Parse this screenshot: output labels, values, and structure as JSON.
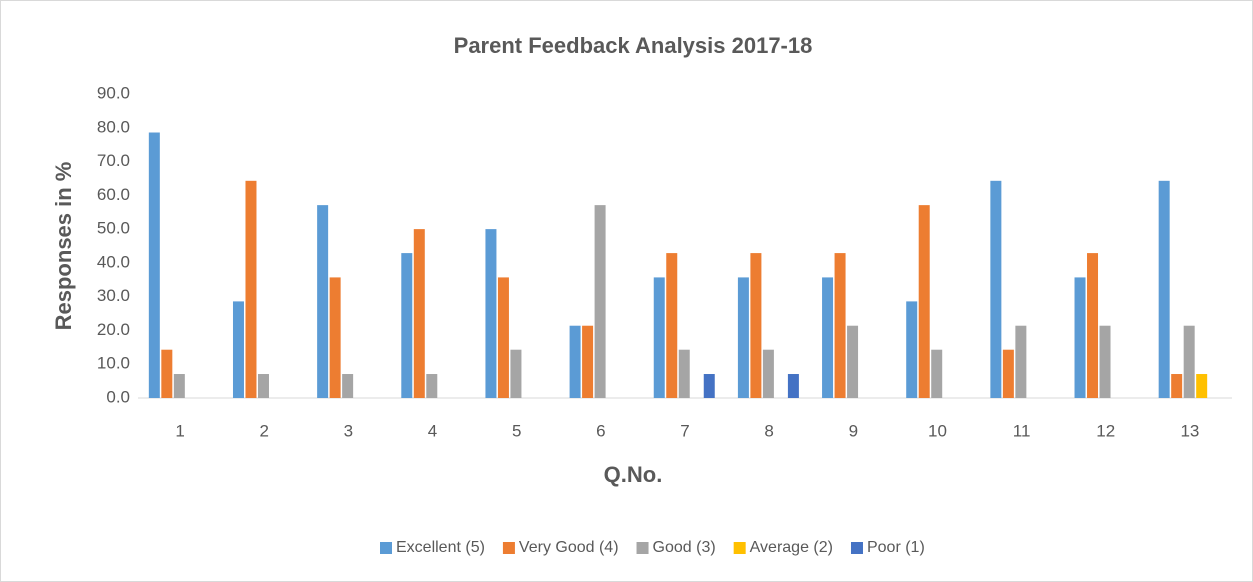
{
  "chart_data": {
    "type": "bar",
    "title": "Parent Feedback Analysis 2017-18",
    "x_label": "Q.No.",
    "y_label": "Responses in %",
    "categories": [
      "1",
      "2",
      "3",
      "4",
      "5",
      "6",
      "7",
      "8",
      "9",
      "10",
      "11",
      "12",
      "13"
    ],
    "series": [
      {
        "name": "Excellent (5)",
        "color": "#5b9bd5",
        "values": [
          78.6,
          28.6,
          57.1,
          42.9,
          50.0,
          21.4,
          35.7,
          35.7,
          35.7,
          28.6,
          64.3,
          35.7,
          64.3
        ]
      },
      {
        "name": "Very Good (4)",
        "color": "#ed7d31",
        "values": [
          14.3,
          64.3,
          35.7,
          50.0,
          35.7,
          21.4,
          42.9,
          42.9,
          42.9,
          57.1,
          14.3,
          42.9,
          7.1
        ]
      },
      {
        "name": "Good (3)",
        "color": "#a5a5a5",
        "values": [
          7.1,
          7.1,
          7.1,
          7.1,
          14.3,
          57.1,
          14.3,
          14.3,
          21.4,
          14.3,
          21.4,
          21.4,
          21.4
        ]
      },
      {
        "name": "Average (2)",
        "color": "#ffc000",
        "values": [
          0,
          0,
          0,
          0,
          0,
          0,
          0,
          0,
          0,
          0,
          0,
          0,
          7.1
        ]
      },
      {
        "name": "Poor (1)",
        "color": "#4472c4",
        "values": [
          0,
          0,
          0,
          0,
          0,
          0,
          7.1,
          7.1,
          0,
          0,
          0,
          0,
          0
        ]
      }
    ],
    "ylim": [
      0,
      90
    ],
    "yticks": [
      {
        "value": 0,
        "label": "0.0"
      },
      {
        "value": 10,
        "label": "10.0"
      },
      {
        "value": 20,
        "label": "20.0"
      },
      {
        "value": 30,
        "label": "30.0"
      },
      {
        "value": 40,
        "label": "40.0"
      },
      {
        "value": 50,
        "label": "50.0"
      },
      {
        "value": 60,
        "label": "60.0"
      },
      {
        "value": 70,
        "label": "70.0"
      },
      {
        "value": 80,
        "label": "80.0"
      },
      {
        "value": 90,
        "label": "90.0"
      }
    ],
    "legend": "bottom"
  }
}
